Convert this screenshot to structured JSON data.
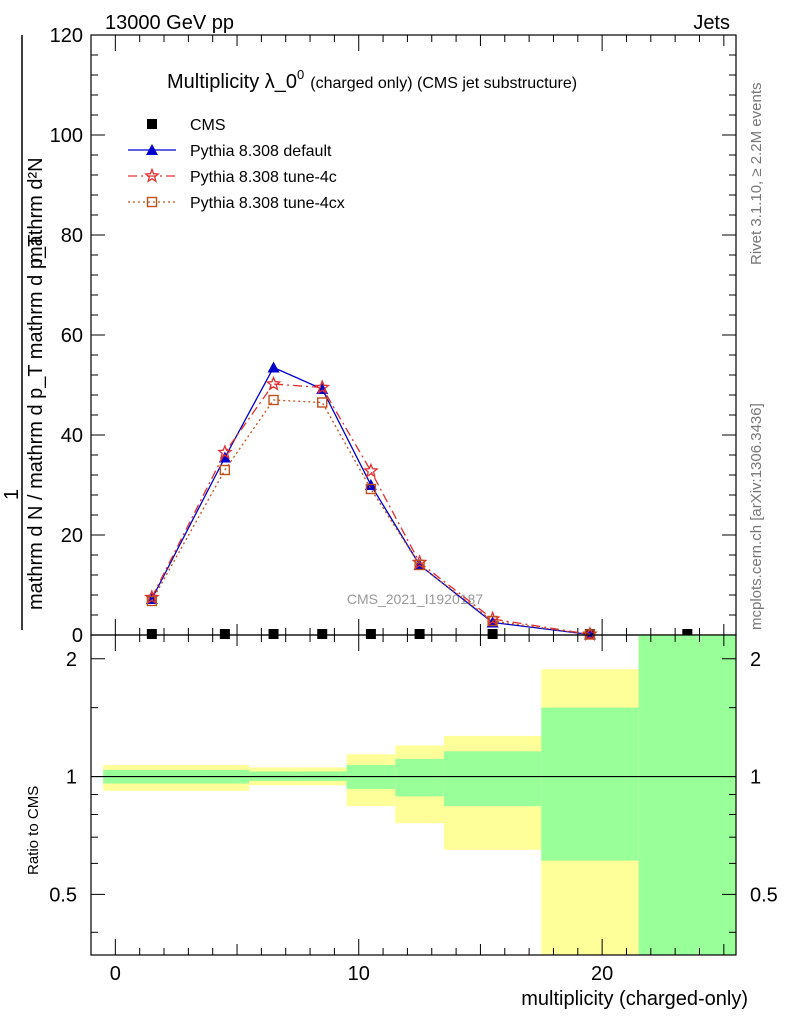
{
  "header": {
    "left": "13000 GeV pp",
    "right": "Jets"
  },
  "side_labels": {
    "rivet": "Rivet 3.1.10, ≥ 2.2M events",
    "mcplots": "mcplots.cern.ch [arXiv:1306.3436]"
  },
  "watermark": "CMS_2021_I1920187",
  "colors": {
    "cms": "#000000",
    "default": "#0000cc",
    "tune4c": "#e03030",
    "tune4cx": "#c05018",
    "band_inner": "#99ff99",
    "band_outer": "#ffff99"
  },
  "chart_data": [
    {
      "type": "line",
      "panel": "main",
      "title": "Multiplicity λ_0",
      "title_sup": "0",
      "title_suffix": "(charged only) (CMS jet substructure)",
      "ylabel_top": "mathrm d²N",
      "ylabel_top2": "mathrm d p_T mathrm d p_T mathrm d lambda",
      "ylabel_num": "1",
      "ylabel_bottom": "mathrm d N / mathrm d p_T mathrm d p_T",
      "xlim": [
        -1,
        25.5
      ],
      "ylim": [
        0,
        120
      ],
      "yticks": [
        0,
        20,
        40,
        60,
        80,
        100,
        120
      ],
      "ytick_labels": [
        "0",
        "20",
        "40",
        "60",
        "80",
        "100",
        "120"
      ],
      "legend_position": "top-left",
      "series": [
        {
          "name": "CMS",
          "marker": "square",
          "x": [
            1.5,
            4.5,
            6.5,
            8.5,
            10.5,
            12.5,
            15.5,
            19.5,
            23.5
          ],
          "y": [
            0.2,
            0.2,
            0.2,
            0.2,
            0.2,
            0.2,
            0.2,
            0.2,
            0.2
          ]
        },
        {
          "name": "Pythia 8.308 default",
          "marker": "triangle",
          "dash": "",
          "x": [
            1.5,
            4.5,
            6.5,
            8.5,
            10.5,
            12.5,
            15.5,
            19.5
          ],
          "y": [
            7.2,
            35.5,
            53.5,
            49.2,
            30.0,
            14.0,
            2.5,
            0.1
          ]
        },
        {
          "name": "Pythia 8.308 tune-4c",
          "marker": "star",
          "dash": "9,4,2,4",
          "x": [
            1.5,
            4.5,
            6.5,
            8.5,
            10.5,
            12.5,
            15.5,
            19.5
          ],
          "y": [
            7.5,
            36.5,
            50.2,
            49.5,
            32.8,
            14.5,
            3.2,
            0.15
          ]
        },
        {
          "name": "Pythia 8.308 tune-4cx",
          "marker": "opensquare",
          "dash": "2,3",
          "x": [
            1.5,
            4.5,
            6.5,
            8.5,
            10.5,
            12.5,
            15.5,
            19.5
          ],
          "y": [
            6.8,
            33.0,
            47.0,
            46.5,
            29.2,
            14.0,
            2.8,
            0.1
          ]
        }
      ]
    },
    {
      "type": "area",
      "panel": "ratio",
      "ylabel": "Ratio to CMS",
      "xlabel": "multiplicity (charged-only)",
      "xlim": [
        -1,
        25.5
      ],
      "ylim": [
        0.35,
        2.3
      ],
      "yticks": [
        0.5,
        1,
        2
      ],
      "ytick_labels": [
        "0.5",
        "1",
        "2"
      ],
      "xticks": [
        0,
        10,
        20
      ],
      "xtick_labels": [
        "0",
        "10",
        "20"
      ],
      "reference_line": 1,
      "bands": [
        {
          "x0": -0.5,
          "x1": 3.5,
          "inner": [
            0.96,
            1.04
          ],
          "outer": [
            0.92,
            1.07
          ]
        },
        {
          "x0": 3.5,
          "x1": 5.5,
          "inner": [
            0.96,
            1.04
          ],
          "outer": [
            0.92,
            1.07
          ]
        },
        {
          "x0": 5.5,
          "x1": 7.5,
          "inner": [
            0.975,
            1.03
          ],
          "outer": [
            0.95,
            1.055
          ]
        },
        {
          "x0": 7.5,
          "x1": 9.5,
          "inner": [
            0.975,
            1.03
          ],
          "outer": [
            0.95,
            1.055
          ]
        },
        {
          "x0": 9.5,
          "x1": 11.5,
          "inner": [
            0.93,
            1.07
          ],
          "outer": [
            0.84,
            1.14
          ]
        },
        {
          "x0": 11.5,
          "x1": 13.5,
          "inner": [
            0.89,
            1.11
          ],
          "outer": [
            0.76,
            1.2
          ]
        },
        {
          "x0": 13.5,
          "x1": 17.5,
          "inner": [
            0.84,
            1.16
          ],
          "outer": [
            0.65,
            1.27
          ]
        },
        {
          "x0": 17.5,
          "x1": 21.5,
          "inner": [
            0.61,
            1.5
          ],
          "outer": [
            0.35,
            1.88
          ]
        },
        {
          "x0": 21.5,
          "x1": 25.5,
          "inner": [
            0.35,
            2.3
          ],
          "outer": [
            0.35,
            2.3
          ]
        }
      ]
    }
  ]
}
